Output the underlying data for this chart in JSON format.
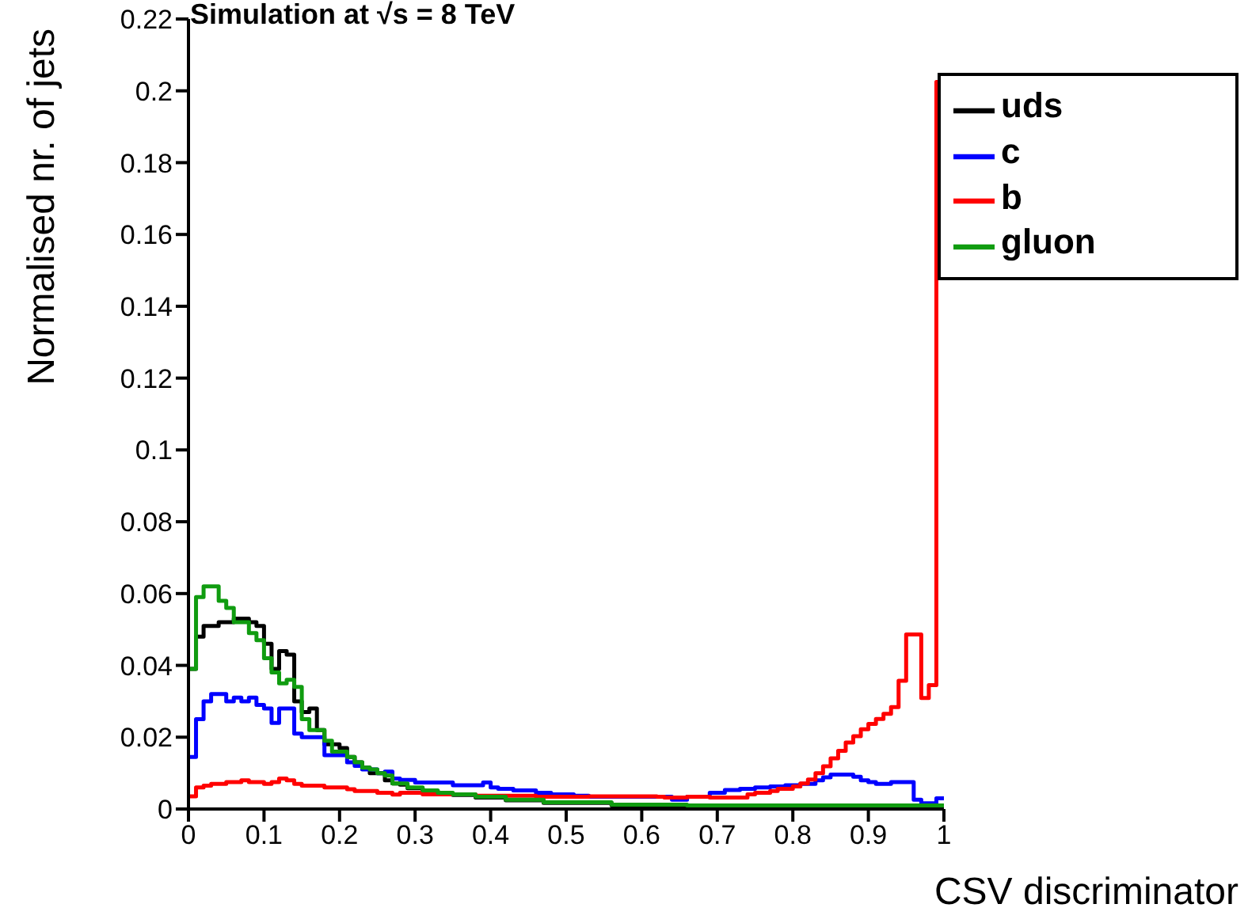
{
  "chart_data": {
    "type": "histogram",
    "title": "Simulation at √s = 8 TeV",
    "xlabel": "CSV discriminator",
    "ylabel": "Normalised nr. of jets",
    "bins": [
      0,
      0.01,
      0.02,
      0.03,
      0.04,
      0.05,
      0.06,
      0.07,
      0.08,
      0.09,
      0.1,
      0.11,
      0.12,
      0.13,
      0.14,
      0.15,
      0.16,
      0.17,
      0.18,
      0.19,
      0.2,
      0.21,
      0.22,
      0.23,
      0.24,
      0.25,
      0.26,
      0.27,
      0.28,
      0.29,
      0.3,
      0.31,
      0.32,
      0.33,
      0.34,
      0.35,
      0.36,
      0.37,
      0.38,
      0.39,
      0.4,
      0.41,
      0.42,
      0.43,
      0.44,
      0.45,
      0.46,
      0.47,
      0.48,
      0.49,
      0.5,
      0.51,
      0.52,
      0.53,
      0.54,
      0.55,
      0.56,
      0.57,
      0.58,
      0.59,
      0.6,
      0.61,
      0.62,
      0.63,
      0.64,
      0.65,
      0.66,
      0.67,
      0.68,
      0.69,
      0.7,
      0.71,
      0.72,
      0.73,
      0.74,
      0.75,
      0.76,
      0.77,
      0.78,
      0.79,
      0.8,
      0.81,
      0.82,
      0.83,
      0.84,
      0.85,
      0.86,
      0.87,
      0.88,
      0.89,
      0.9,
      0.91,
      0.92,
      0.93,
      0.94,
      0.95,
      0.96,
      0.97,
      0.98,
      0.99,
      1
    ],
    "series": [
      {
        "name": "uds",
        "color": "#000000",
        "values": [
          0.039,
          0.048,
          0.051,
          0.051,
          0.052,
          0.052,
          0.053,
          0.053,
          0.052,
          0.051,
          0.046,
          0.039,
          0.044,
          0.043,
          0.03,
          0.027,
          0.028,
          0.022,
          0.018,
          0.018,
          0.017,
          0.0145,
          0.013,
          0.0115,
          0.01,
          0.01,
          0.008,
          0.0071,
          0.0068,
          0.0058,
          0.0058,
          0.005,
          0.005,
          0.0043,
          0.0043,
          0.0039,
          0.0039,
          0.0039,
          0.0032,
          0.0032,
          0.0032,
          0.0032,
          0.0024,
          0.0024,
          0.0024,
          0.0024,
          0.0024,
          0.0017,
          0.0017,
          0.0017,
          0.0017,
          0.0017,
          0.0017,
          0.0017,
          0.0017,
          0.0017,
          0.001,
          0.001,
          0.001,
          0.001,
          0.001,
          0.001,
          0.0007,
          0.0007,
          0.0007,
          0.0007,
          0.0007,
          0.0007,
          0.0007,
          0.0007,
          0.0007,
          0.0007,
          0.0007,
          0.0007,
          0.0007,
          0.0007,
          0.0007,
          0.0007,
          0.0007,
          0.0007,
          0.0007,
          0.0007,
          0.0007,
          0.0007,
          0.0007,
          0.0007,
          0.0007,
          0.0007,
          0.0007,
          0.0007,
          0.0005,
          0.0005,
          0.0005,
          0.0005,
          0.0005,
          0.0005,
          0.0005,
          0.0005,
          0.0005,
          0.0005
        ]
      },
      {
        "name": "c",
        "color": "#0000ff",
        "values": [
          0.0145,
          0.025,
          0.03,
          0.032,
          0.032,
          0.03,
          0.031,
          0.03,
          0.031,
          0.029,
          0.028,
          0.024,
          0.028,
          0.028,
          0.021,
          0.02,
          0.02,
          0.02,
          0.015,
          0.015,
          0.015,
          0.013,
          0.012,
          0.011,
          0.011,
          0.01,
          0.0104,
          0.0085,
          0.0081,
          0.0081,
          0.0074,
          0.0074,
          0.0074,
          0.0074,
          0.0074,
          0.0066,
          0.0066,
          0.0066,
          0.0066,
          0.0074,
          0.006,
          0.0056,
          0.0056,
          0.0052,
          0.0052,
          0.0052,
          0.0045,
          0.0045,
          0.0041,
          0.0041,
          0.0041,
          0.0037,
          0.0037,
          0.0034,
          0.0034,
          0.0034,
          0.0034,
          0.0034,
          0.0034,
          0.0034,
          0.0034,
          0.0034,
          0.0034,
          0.0034,
          0.0026,
          0.0026,
          0.0034,
          0.0034,
          0.0034,
          0.0045,
          0.0045,
          0.0053,
          0.0053,
          0.0056,
          0.0056,
          0.006,
          0.006,
          0.0063,
          0.0063,
          0.0066,
          0.0066,
          0.007,
          0.007,
          0.008,
          0.0088,
          0.0096,
          0.0096,
          0.0096,
          0.009,
          0.008,
          0.0075,
          0.007,
          0.007,
          0.0075,
          0.0075,
          0.0075,
          0.0026,
          0.0016,
          0.0016,
          0.003
        ]
      },
      {
        "name": "b",
        "color": "#ff0000",
        "values": [
          0.0035,
          0.006,
          0.0065,
          0.007,
          0.007,
          0.0075,
          0.0075,
          0.008,
          0.0075,
          0.0075,
          0.007,
          0.0075,
          0.0085,
          0.008,
          0.007,
          0.0065,
          0.0065,
          0.0065,
          0.006,
          0.006,
          0.006,
          0.0055,
          0.005,
          0.005,
          0.005,
          0.0045,
          0.0045,
          0.004,
          0.0045,
          0.0045,
          0.0045,
          0.0041,
          0.0041,
          0.0041,
          0.0041,
          0.0041,
          0.0041,
          0.0041,
          0.0037,
          0.0037,
          0.0037,
          0.0037,
          0.0037,
          0.0037,
          0.0037,
          0.0037,
          0.0034,
          0.0034,
          0.0034,
          0.0034,
          0.0034,
          0.0034,
          0.0034,
          0.0035,
          0.0035,
          0.0035,
          0.0035,
          0.0035,
          0.0035,
          0.0035,
          0.0035,
          0.0035,
          0.0034,
          0.0032,
          0.0032,
          0.0032,
          0.0034,
          0.0034,
          0.0034,
          0.0032,
          0.0032,
          0.0032,
          0.0032,
          0.0032,
          0.0041,
          0.0045,
          0.0045,
          0.005,
          0.0056,
          0.0056,
          0.0063,
          0.0071,
          0.0082,
          0.01,
          0.0119,
          0.0141,
          0.0162,
          0.0185,
          0.0203,
          0.0222,
          0.0237,
          0.0251,
          0.0265,
          0.0284,
          0.0357,
          0.0486,
          0.0486,
          0.0309,
          0.0345,
          0.2025
        ]
      },
      {
        "name": "gluon",
        "color": "#109c10",
        "values": [
          0.039,
          0.059,
          0.062,
          0.062,
          0.058,
          0.056,
          0.052,
          0.052,
          0.049,
          0.047,
          0.042,
          0.038,
          0.035,
          0.036,
          0.034,
          0.025,
          0.022,
          0.022,
          0.019,
          0.016,
          0.016,
          0.0145,
          0.013,
          0.0115,
          0.011,
          0.01,
          0.0093,
          0.0071,
          0.0071,
          0.006,
          0.006,
          0.0052,
          0.0052,
          0.0045,
          0.0045,
          0.0041,
          0.0041,
          0.0041,
          0.0034,
          0.0034,
          0.0034,
          0.0034,
          0.0026,
          0.0026,
          0.0026,
          0.0026,
          0.0026,
          0.0019,
          0.0019,
          0.0019,
          0.0019,
          0.0019,
          0.0019,
          0.0019,
          0.0019,
          0.0019,
          0.0012,
          0.0012,
          0.0012,
          0.0012,
          0.0012,
          0.0012,
          0.0012,
          0.0012,
          0.0012,
          0.0012,
          0.001,
          0.001,
          0.001,
          0.001,
          0.001,
          0.001,
          0.001,
          0.001,
          0.001,
          0.001,
          0.001,
          0.001,
          0.001,
          0.001,
          0.001,
          0.001,
          0.001,
          0.001,
          0.001,
          0.001,
          0.001,
          0.001,
          0.001,
          0.001,
          0.001,
          0.001,
          0.001,
          0.001,
          0.001,
          0.001,
          0.001,
          0.001,
          0.001,
          0.001
        ]
      }
    ],
    "xlim": [
      0,
      1
    ],
    "xticks": [
      0,
      0.1,
      0.2,
      0.3,
      0.4,
      0.5,
      0.6,
      0.7,
      0.8,
      0.9,
      1
    ],
    "ylim": [
      0,
      0.22
    ],
    "yticks": [
      0,
      0.02,
      0.04,
      0.06,
      0.08,
      0.1,
      0.12,
      0.14,
      0.16,
      0.18,
      0.2,
      0.22
    ],
    "legend": "top right"
  }
}
